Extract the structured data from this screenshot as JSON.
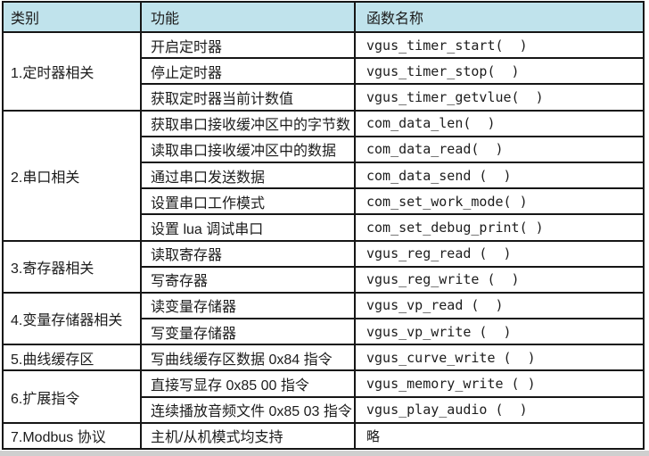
{
  "colors": {
    "header_bg": "#c0e3ec",
    "border": "#161616",
    "text": "#1c1c1c"
  },
  "table": {
    "headers": [
      "类别",
      "功能",
      "函数名称"
    ],
    "groups": [
      {
        "category": "1.定时器相关",
        "rows": [
          {
            "function": "开启定时器",
            "name": "vgus_timer_start(  )"
          },
          {
            "function": "停止定时器",
            "name": "vgus_timer_stop(  )"
          },
          {
            "function": "获取定时器当前计数值",
            "name": "vgus_timer_getvlue(  )"
          }
        ]
      },
      {
        "category": "2.串口相关",
        "rows": [
          {
            "function": "获取串口接收缓冲区中的字节数",
            "name": "com_data_len(  )"
          },
          {
            "function": "读取串口接收缓冲区中的数据",
            "name": "com_data_read(  )"
          },
          {
            "function": "通过串口发送数据",
            "name": "com_data_send (  )"
          },
          {
            "function": "设置串口工作模式",
            "name": "com_set_work_mode( )"
          },
          {
            "function": "设置 lua 调试串口",
            "name": "com_set_debug_print( )"
          }
        ]
      },
      {
        "category": "3.寄存器相关",
        "rows": [
          {
            "function": "读取寄存器",
            "name": "vgus_reg_read (  )"
          },
          {
            "function": "写寄存器",
            "name": "vgus_reg_write (  )"
          }
        ]
      },
      {
        "category": "4.变量存储器相关",
        "rows": [
          {
            "function": "读变量存储器",
            "name": "vgus_vp_read (  )"
          },
          {
            "function": "写变量存储器",
            "name": "vgus_vp_write (  )"
          }
        ]
      },
      {
        "category": "5.曲线缓存区",
        "rows": [
          {
            "function": "写曲线缓存区数据 0x84 指令",
            "name": "vgus_curve_write (  )"
          }
        ]
      },
      {
        "category": "6.扩展指令",
        "rows": [
          {
            "function": "直接写显存 0x85 00 指令",
            "name": "vgus_memory_write ( )"
          },
          {
            "function": "连续播放音频文件 0x85 03 指令",
            "name": "vgus_play_audio (  )"
          }
        ]
      },
      {
        "category": "7.Modbus 协议",
        "rows": [
          {
            "function": "主机/从机模式均支持",
            "name": "略"
          }
        ]
      }
    ]
  }
}
